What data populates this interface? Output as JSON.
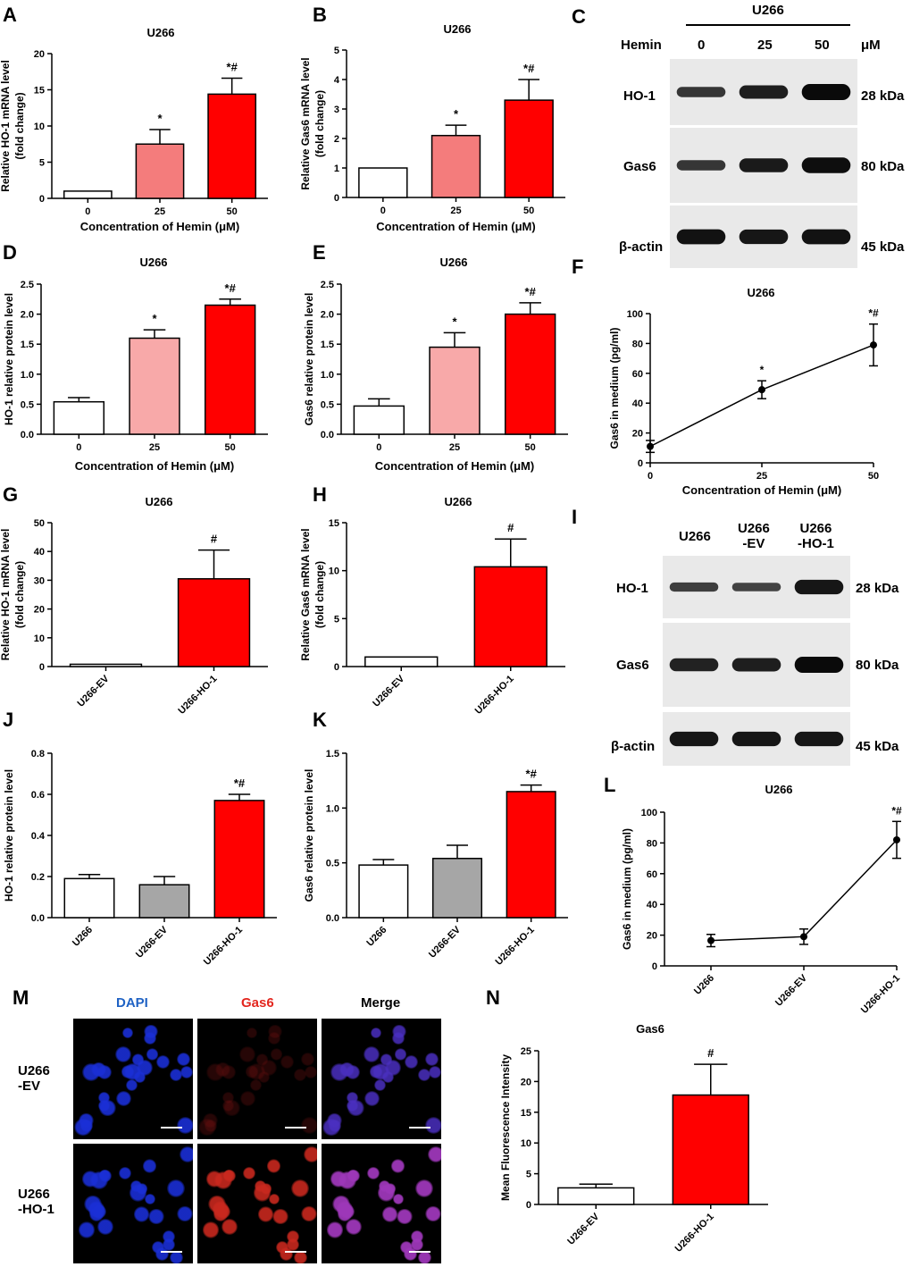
{
  "panel_letters": [
    "A",
    "B",
    "C",
    "D",
    "E",
    "F",
    "G",
    "H",
    "I",
    "J",
    "K",
    "L",
    "M",
    "N"
  ],
  "colors": {
    "red": "#ff0000",
    "light_red": "#f47c7c",
    "pink": "#f8a9a9",
    "gray": "#a6a6a6",
    "white": "#ffffff",
    "blue_label": "#1f62c4",
    "red_label": "#e3261e"
  },
  "westernC": {
    "cell_line": "U266",
    "treatment_label": "Hemin",
    "doses": [
      "0",
      "25",
      "50"
    ],
    "unit": "μM",
    "bands": [
      {
        "name": "HO-1",
        "size": "28 kDa",
        "intensities": [
          0.45,
          0.75,
          1.0
        ]
      },
      {
        "name": "Gas6",
        "size": "80 kDa",
        "intensities": [
          0.45,
          0.8,
          0.95
        ]
      },
      {
        "name": "β-actin",
        "size": "45 kDa",
        "intensities": [
          0.9,
          0.85,
          0.9
        ]
      }
    ]
  },
  "westernI": {
    "lanes": [
      "U266",
      "U266\n-EV",
      "U266\n-HO-1"
    ],
    "lane_lines": [
      [
        "U266"
      ],
      [
        "U266",
        "-EV"
      ],
      [
        "U266",
        "-HO-1"
      ]
    ],
    "bands": [
      {
        "name": "HO-1",
        "size": "28 kDa",
        "intensities": [
          0.35,
          0.3,
          0.85
        ]
      },
      {
        "name": "Gas6",
        "size": "80 kDa",
        "intensities": [
          0.7,
          0.75,
          1.0
        ]
      },
      {
        "name": "β-actin",
        "size": "45 kDa",
        "intensities": [
          0.85,
          0.85,
          0.85
        ]
      }
    ]
  },
  "panelM": {
    "col_headers": [
      "DAPI",
      "Gas6",
      "Merge"
    ],
    "row_labels": [
      [
        "U266",
        "-EV"
      ],
      [
        "U266",
        "-HO-1"
      ]
    ]
  },
  "chart_data": [
    {
      "id": "A",
      "type": "bar",
      "title": "U266",
      "xlabel": "Concentration of Hemin (μM)",
      "ylabel": [
        "Relative HO-1 mRNA level",
        "(fold change)"
      ],
      "categories": [
        "0",
        "25",
        "50"
      ],
      "values": [
        1.0,
        7.5,
        14.4
      ],
      "errors": [
        0,
        2.0,
        2.2
      ],
      "sig": [
        "",
        "*",
        "*#"
      ],
      "ylim": [
        0,
        20
      ],
      "yticks": [
        0,
        5,
        10,
        15,
        20
      ],
      "bar_colors": [
        "#ffffff",
        "#f47c7c",
        "#ff0000"
      ],
      "rotate_xticks": false
    },
    {
      "id": "B",
      "type": "bar",
      "title": "U266",
      "xlabel": "Concentration of Hemin (μM)",
      "ylabel": [
        "Relative Gas6 mRNA level",
        "(fold change)"
      ],
      "categories": [
        "0",
        "25",
        "50"
      ],
      "values": [
        1.0,
        2.1,
        3.3
      ],
      "errors": [
        0,
        0.35,
        0.7
      ],
      "sig": [
        "",
        "*",
        "*#"
      ],
      "ylim": [
        0,
        5
      ],
      "yticks": [
        0,
        1,
        2,
        3,
        4,
        5
      ],
      "bar_colors": [
        "#ffffff",
        "#f47c7c",
        "#ff0000"
      ],
      "rotate_xticks": false
    },
    {
      "id": "D",
      "type": "bar",
      "title": "U266",
      "xlabel": "Concentration of Hemin (μM)",
      "ylabel": [
        "HO-1 relative protein level"
      ],
      "categories": [
        "0",
        "25",
        "50"
      ],
      "values": [
        0.54,
        1.6,
        2.15
      ],
      "errors": [
        0.07,
        0.14,
        0.1
      ],
      "sig": [
        "",
        "*",
        "*#"
      ],
      "ylim": [
        0,
        2.5
      ],
      "yticks": [
        0.0,
        0.5,
        1.0,
        1.5,
        2.0,
        2.5
      ],
      "tick_decimals": 1,
      "bar_colors": [
        "#ffffff",
        "#f8a9a9",
        "#ff0000"
      ],
      "rotate_xticks": false
    },
    {
      "id": "E",
      "type": "bar",
      "title": "U266",
      "xlabel": "Concentration of Hemin (μM)",
      "ylabel": [
        "Gas6 relative protein level"
      ],
      "categories": [
        "0",
        "25",
        "50"
      ],
      "values": [
        0.47,
        1.45,
        2.0
      ],
      "errors": [
        0.12,
        0.24,
        0.19
      ],
      "sig": [
        "",
        "*",
        "*#"
      ],
      "ylim": [
        0,
        2.5
      ],
      "yticks": [
        0.0,
        0.5,
        1.0,
        1.5,
        2.0,
        2.5
      ],
      "tick_decimals": 1,
      "bar_colors": [
        "#ffffff",
        "#f8a9a9",
        "#ff0000"
      ],
      "rotate_xticks": false
    },
    {
      "id": "F",
      "type": "line",
      "title": "U266",
      "xlabel": "Concentration of Hemin (μM)",
      "ylabel": [
        "Gas6 in medium (pg/ml)"
      ],
      "x": [
        0,
        25,
        50
      ],
      "values": [
        11,
        49,
        79
      ],
      "errors": [
        4,
        6,
        14
      ],
      "sig": [
        "",
        "*",
        "*#"
      ],
      "ylim": [
        0,
        100
      ],
      "yticks": [
        0,
        20,
        40,
        60,
        80,
        100
      ],
      "xlim": [
        0,
        50
      ],
      "xticks": [
        0,
        25,
        50
      ]
    },
    {
      "id": "G",
      "type": "bar",
      "title": "U266",
      "xlabel": "",
      "ylabel": [
        "Relative HO-1 mRNA level",
        "(fold change)"
      ],
      "categories": [
        "U266-EV",
        "U266-HO-1"
      ],
      "values": [
        0.8,
        30.5
      ],
      "errors": [
        0,
        10
      ],
      "sig": [
        "",
        "#"
      ],
      "ylim": [
        0,
        50
      ],
      "yticks": [
        0,
        10,
        20,
        30,
        40,
        50
      ],
      "bar_colors": [
        "#ffffff",
        "#ff0000"
      ],
      "rotate_xticks": true
    },
    {
      "id": "H",
      "type": "bar",
      "title": "U266",
      "xlabel": "",
      "ylabel": [
        "Relative Gas6 mRNA level",
        "(fold change)"
      ],
      "categories": [
        "U266-EV",
        "U266-HO-1"
      ],
      "values": [
        1.0,
        10.4
      ],
      "errors": [
        0,
        2.9
      ],
      "sig": [
        "",
        "#"
      ],
      "ylim": [
        0,
        15
      ],
      "yticks": [
        0,
        5,
        10,
        15
      ],
      "bar_colors": [
        "#ffffff",
        "#ff0000"
      ],
      "rotate_xticks": true
    },
    {
      "id": "J",
      "type": "bar",
      "title": "",
      "xlabel": "",
      "ylabel": [
        "HO-1 relative protein level"
      ],
      "categories": [
        "U266",
        "U266-EV",
        "U266-HO-1"
      ],
      "values": [
        0.19,
        0.16,
        0.57
      ],
      "errors": [
        0.02,
        0.04,
        0.03
      ],
      "sig": [
        "",
        "",
        "*#"
      ],
      "ylim": [
        0,
        0.8
      ],
      "yticks": [
        0.0,
        0.2,
        0.4,
        0.6,
        0.8
      ],
      "tick_decimals": 1,
      "bar_colors": [
        "#ffffff",
        "#a6a6a6",
        "#ff0000"
      ],
      "rotate_xticks": true
    },
    {
      "id": "K",
      "type": "bar",
      "title": "",
      "xlabel": "",
      "ylabel": [
        "Gas6 relative protein level"
      ],
      "categories": [
        "U266",
        "U266-EV",
        "U266-HO-1"
      ],
      "values": [
        0.48,
        0.54,
        1.15
      ],
      "errors": [
        0.05,
        0.12,
        0.06
      ],
      "sig": [
        "",
        "",
        "*#"
      ],
      "ylim": [
        0,
        1.5
      ],
      "yticks": [
        0.0,
        0.5,
        1.0,
        1.5
      ],
      "tick_decimals": 1,
      "bar_colors": [
        "#ffffff",
        "#a6a6a6",
        "#ff0000"
      ],
      "rotate_xticks": true
    },
    {
      "id": "L",
      "type": "line",
      "title": "U266",
      "xlabel": "",
      "ylabel": [
        "Gas6 in medium (pg/ml)"
      ],
      "categories": [
        "U266",
        "U266-EV",
        "U266-HO-1"
      ],
      "values": [
        16.5,
        19,
        82
      ],
      "errors": [
        4,
        5,
        12
      ],
      "sig": [
        "",
        "",
        "*#"
      ],
      "ylim": [
        0,
        100
      ],
      "yticks": [
        0,
        20,
        40,
        60,
        80,
        100
      ],
      "rotate_xticks": true
    },
    {
      "id": "N",
      "type": "bar",
      "title": "Gas6",
      "xlabel": "",
      "ylabel": [
        "Mean Fluorescence Intensity"
      ],
      "categories": [
        "U266-EV",
        "U266-HO-1"
      ],
      "values": [
        2.7,
        17.8
      ],
      "errors": [
        0.6,
        5
      ],
      "sig": [
        "",
        "#"
      ],
      "ylim": [
        0,
        25
      ],
      "yticks": [
        0,
        5,
        10,
        15,
        20,
        25
      ],
      "bar_colors": [
        "#ffffff",
        "#ff0000"
      ],
      "rotate_xticks": true
    }
  ]
}
